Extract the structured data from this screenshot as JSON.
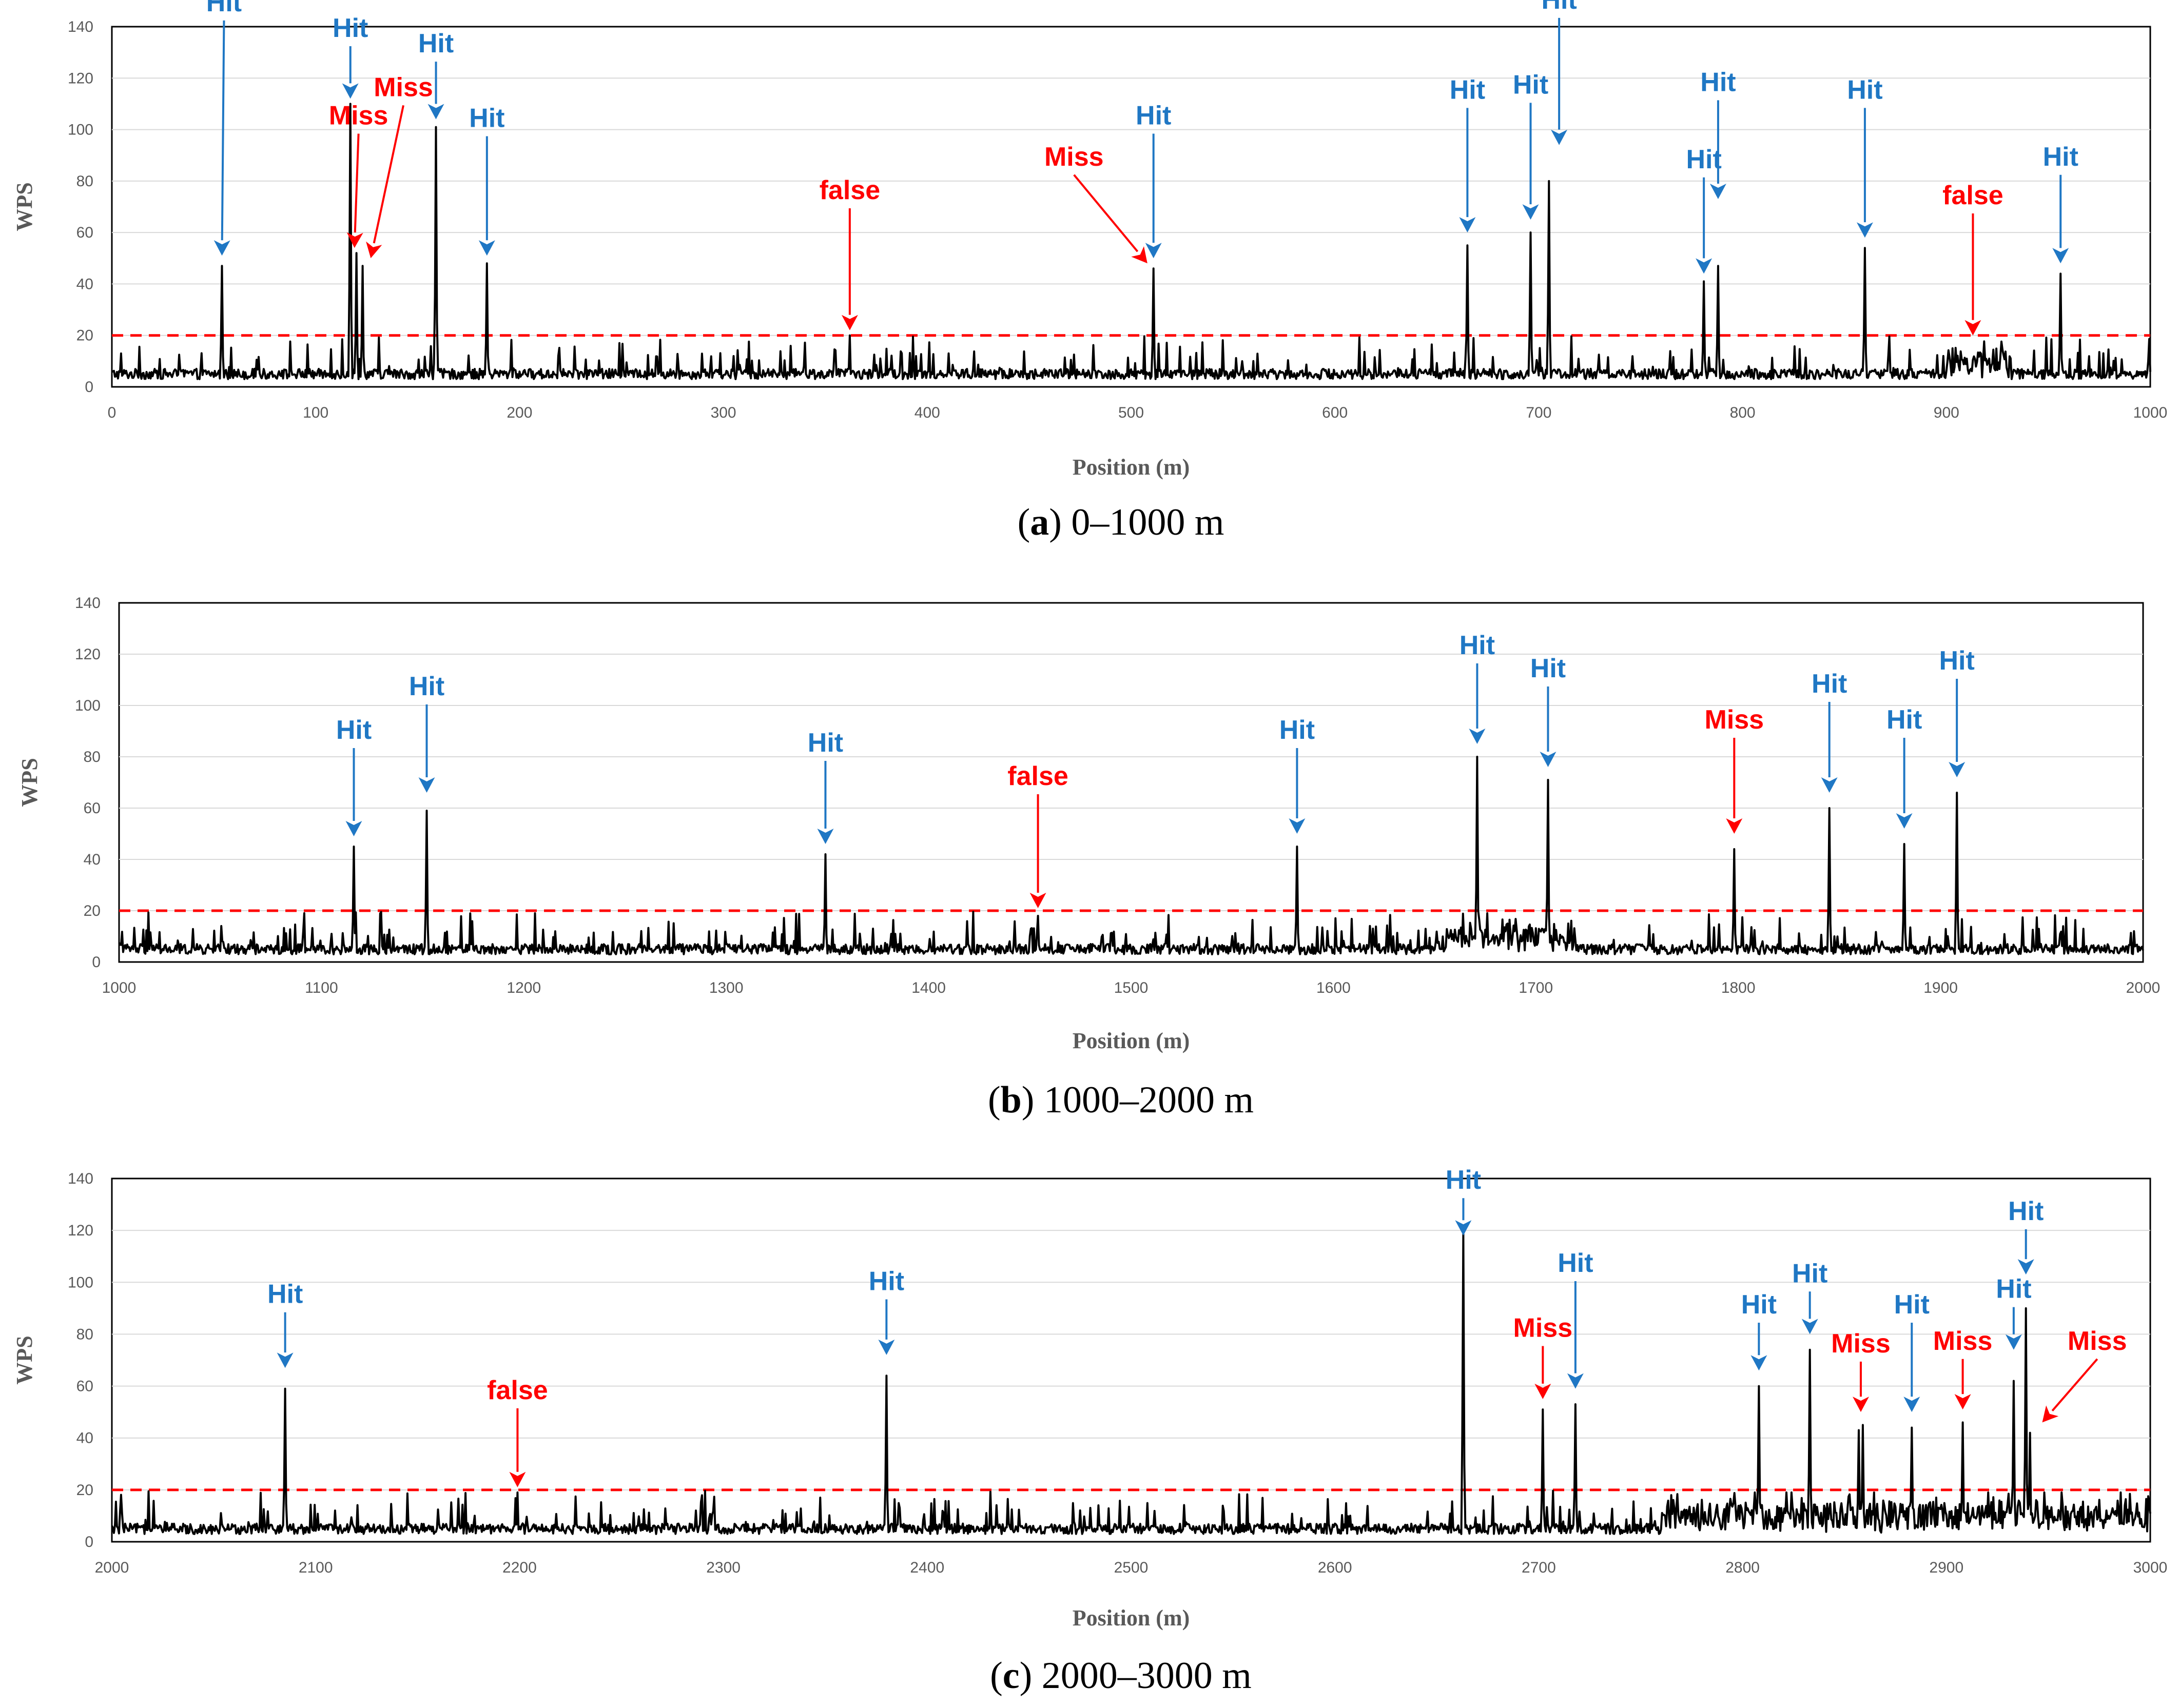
{
  "chart_data": [
    {
      "type": "line",
      "caption_letter": "a",
      "caption_text": " 0–1000 m",
      "xlabel": "Position (m)",
      "ylabel": "WPS",
      "xlim": [
        0,
        1000
      ],
      "ylim": [
        0,
        140
      ],
      "xticks": [
        0,
        100,
        200,
        300,
        400,
        500,
        600,
        700,
        800,
        900,
        1000
      ],
      "yticks": [
        0,
        20,
        40,
        60,
        80,
        100,
        120,
        140
      ],
      "grid": true,
      "threshold": 20,
      "peaks": [
        {
          "x": 54,
          "y": 47
        },
        {
          "x": 117,
          "y": 110
        },
        {
          "x": 120,
          "y": 52
        },
        {
          "x": 123,
          "y": 47
        },
        {
          "x": 159,
          "y": 101
        },
        {
          "x": 184,
          "y": 48
        },
        {
          "x": 362,
          "y": 20
        },
        {
          "x": 511,
          "y": 46
        },
        {
          "x": 665,
          "y": 55
        },
        {
          "x": 696,
          "y": 60
        },
        {
          "x": 705,
          "y": 80
        },
        {
          "x": 781,
          "y": 41
        },
        {
          "x": 788,
          "y": 47
        },
        {
          "x": 860,
          "y": 54
        },
        {
          "x": 956,
          "y": 44
        }
      ],
      "annotations": [
        {
          "label": "Hit",
          "kind": "hit",
          "tx": 55,
          "ty": 146,
          "ax": 54,
          "ay": 51
        },
        {
          "label": "Hit",
          "kind": "hit",
          "tx": 117,
          "ty": 136,
          "ax": 117,
          "ay": 112
        },
        {
          "label": "Miss",
          "kind": "miss",
          "tx": 121,
          "ty": 102,
          "ax": 119,
          "ay": 54
        },
        {
          "label": "Miss",
          "kind": "miss",
          "tx": 143,
          "ty": 113,
          "ax": 127,
          "ay": 50
        },
        {
          "label": "Hit",
          "kind": "hit",
          "tx": 159,
          "ty": 130,
          "ax": 159,
          "ay": 104
        },
        {
          "label": "Hit",
          "kind": "hit",
          "tx": 184,
          "ty": 101,
          "ax": 184,
          "ay": 51
        },
        {
          "label": "false",
          "kind": "false",
          "tx": 362,
          "ty": 73,
          "ax": 362,
          "ay": 22
        },
        {
          "label": "Miss",
          "kind": "miss",
          "tx": 472,
          "ty": 86,
          "ax": 508,
          "ay": 48
        },
        {
          "label": "Hit",
          "kind": "hit",
          "tx": 511,
          "ty": 102,
          "ax": 511,
          "ay": 50
        },
        {
          "label": "Hit",
          "kind": "hit",
          "tx": 665,
          "ty": 112,
          "ax": 665,
          "ay": 60
        },
        {
          "label": "Hit",
          "kind": "hit",
          "tx": 696,
          "ty": 114,
          "ax": 696,
          "ay": 65
        },
        {
          "label": "Hit",
          "kind": "hit",
          "tx": 710,
          "ty": 147,
          "ax": 710,
          "ay": 94
        },
        {
          "label": "Hit",
          "kind": "hit",
          "tx": 781,
          "ty": 85,
          "ax": 781,
          "ay": 44
        },
        {
          "label": "Hit",
          "kind": "hit",
          "tx": 788,
          "ty": 115,
          "ax": 788,
          "ay": 73
        },
        {
          "label": "Hit",
          "kind": "hit",
          "tx": 860,
          "ty": 112,
          "ax": 860,
          "ay": 58
        },
        {
          "label": "false",
          "kind": "false",
          "tx": 913,
          "ty": 71,
          "ax": 913,
          "ay": 20
        },
        {
          "label": "Hit",
          "kind": "hit",
          "tx": 956,
          "ty": 86,
          "ax": 956,
          "ay": 48
        }
      ]
    },
    {
      "type": "line",
      "caption_letter": "b",
      "caption_text": " 1000–2000 m",
      "xlabel": "Position (m)",
      "ylabel": "WPS",
      "xlim": [
        1000,
        2000
      ],
      "ylim": [
        0,
        140
      ],
      "xticks": [
        1000,
        1100,
        1200,
        1300,
        1400,
        1500,
        1600,
        1700,
        1800,
        1900,
        2000
      ],
      "yticks": [
        0,
        20,
        40,
        60,
        80,
        100,
        120,
        140
      ],
      "grid": true,
      "threshold": 20,
      "peaks": [
        {
          "x": 1116,
          "y": 45
        },
        {
          "x": 1152,
          "y": 59
        },
        {
          "x": 1349,
          "y": 42
        },
        {
          "x": 1454,
          "y": 18
        },
        {
          "x": 1582,
          "y": 45
        },
        {
          "x": 1671,
          "y": 80
        },
        {
          "x": 1706,
          "y": 71
        },
        {
          "x": 1798,
          "y": 44
        },
        {
          "x": 1845,
          "y": 60
        },
        {
          "x": 1882,
          "y": 46
        },
        {
          "x": 1908,
          "y": 66
        }
      ],
      "annotations": [
        {
          "label": "Hit",
          "kind": "hit",
          "tx": 1116,
          "ty": 87,
          "ax": 1116,
          "ay": 49
        },
        {
          "label": "Hit",
          "kind": "hit",
          "tx": 1152,
          "ty": 104,
          "ax": 1152,
          "ay": 66
        },
        {
          "label": "Hit",
          "kind": "hit",
          "tx": 1349,
          "ty": 82,
          "ax": 1349,
          "ay": 46
        },
        {
          "label": "false",
          "kind": "false",
          "tx": 1454,
          "ty": 69,
          "ax": 1454,
          "ay": 21
        },
        {
          "label": "Hit",
          "kind": "hit",
          "tx": 1582,
          "ty": 87,
          "ax": 1582,
          "ay": 50
        },
        {
          "label": "Hit",
          "kind": "hit",
          "tx": 1671,
          "ty": 120,
          "ax": 1671,
          "ay": 85
        },
        {
          "label": "Hit",
          "kind": "hit",
          "tx": 1706,
          "ty": 111,
          "ax": 1706,
          "ay": 76
        },
        {
          "label": "Miss",
          "kind": "miss",
          "tx": 1798,
          "ty": 91,
          "ax": 1798,
          "ay": 50
        },
        {
          "label": "Hit",
          "kind": "hit",
          "tx": 1845,
          "ty": 105,
          "ax": 1845,
          "ay": 66
        },
        {
          "label": "Hit",
          "kind": "hit",
          "tx": 1882,
          "ty": 91,
          "ax": 1882,
          "ay": 52
        },
        {
          "label": "Hit",
          "kind": "hit",
          "tx": 1908,
          "ty": 114,
          "ax": 1908,
          "ay": 72
        }
      ]
    },
    {
      "type": "line",
      "caption_letter": "c",
      "caption_text": " 2000–3000 m",
      "xlabel": "Position (m)",
      "ylabel": "WPS",
      "xlim": [
        2000,
        3000
      ],
      "ylim": [
        0,
        140
      ],
      "xticks": [
        2000,
        2100,
        2200,
        2300,
        2400,
        2500,
        2600,
        2700,
        2800,
        2900,
        3000
      ],
      "yticks": [
        0,
        20,
        40,
        60,
        80,
        100,
        120,
        140
      ],
      "grid": true,
      "threshold": 20,
      "peaks": [
        {
          "x": 2085,
          "y": 59
        },
        {
          "x": 2199,
          "y": 19
        },
        {
          "x": 2380,
          "y": 64
        },
        {
          "x": 2663,
          "y": 119
        },
        {
          "x": 2702,
          "y": 51
        },
        {
          "x": 2718,
          "y": 53
        },
        {
          "x": 2808,
          "y": 60
        },
        {
          "x": 2833,
          "y": 74
        },
        {
          "x": 2857,
          "y": 43
        },
        {
          "x": 2859,
          "y": 45
        },
        {
          "x": 2883,
          "y": 44
        },
        {
          "x": 2908,
          "y": 46
        },
        {
          "x": 2933,
          "y": 62
        },
        {
          "x": 2939,
          "y": 90
        },
        {
          "x": 2941,
          "y": 42
        }
      ],
      "annotations": [
        {
          "label": "Hit",
          "kind": "hit",
          "tx": 2085,
          "ty": 92,
          "ax": 2085,
          "ay": 67
        },
        {
          "label": "false",
          "kind": "false",
          "tx": 2199,
          "ty": 55,
          "ax": 2199,
          "ay": 21
        },
        {
          "label": "Hit",
          "kind": "hit",
          "tx": 2380,
          "ty": 97,
          "ax": 2380,
          "ay": 72
        },
        {
          "label": "Hit",
          "kind": "hit",
          "tx": 2663,
          "ty": 136,
          "ax": 2663,
          "ay": 118
        },
        {
          "label": "Miss",
          "kind": "miss",
          "tx": 2702,
          "ty": 79,
          "ax": 2702,
          "ay": 55
        },
        {
          "label": "Hit",
          "kind": "hit",
          "tx": 2718,
          "ty": 104,
          "ax": 2718,
          "ay": 59
        },
        {
          "label": "Hit",
          "kind": "hit",
          "tx": 2808,
          "ty": 88,
          "ax": 2808,
          "ay": 66
        },
        {
          "label": "Hit",
          "kind": "hit",
          "tx": 2833,
          "ty": 100,
          "ax": 2833,
          "ay": 80
        },
        {
          "label": "Miss",
          "kind": "miss",
          "tx": 2858,
          "ty": 73,
          "ax": 2858,
          "ay": 50
        },
        {
          "label": "Hit",
          "kind": "hit",
          "tx": 2883,
          "ty": 88,
          "ax": 2883,
          "ay": 50
        },
        {
          "label": "Miss",
          "kind": "miss",
          "tx": 2908,
          "ty": 74,
          "ax": 2908,
          "ay": 51
        },
        {
          "label": "Hit",
          "kind": "hit",
          "tx": 2933,
          "ty": 94,
          "ax": 2933,
          "ay": 74
        },
        {
          "label": "Hit",
          "kind": "hit",
          "tx": 2939,
          "ty": 124,
          "ax": 2939,
          "ay": 103
        },
        {
          "label": "Miss",
          "kind": "miss",
          "tx": 2974,
          "ty": 74,
          "ax": 2947,
          "ay": 46
        }
      ]
    }
  ],
  "colors": {
    "hit": "#1F77C4",
    "miss": "#FF0000",
    "false": "#FF0000",
    "series": "#000000",
    "threshold": "#FF0000",
    "grid": "#D9D9D9"
  }
}
